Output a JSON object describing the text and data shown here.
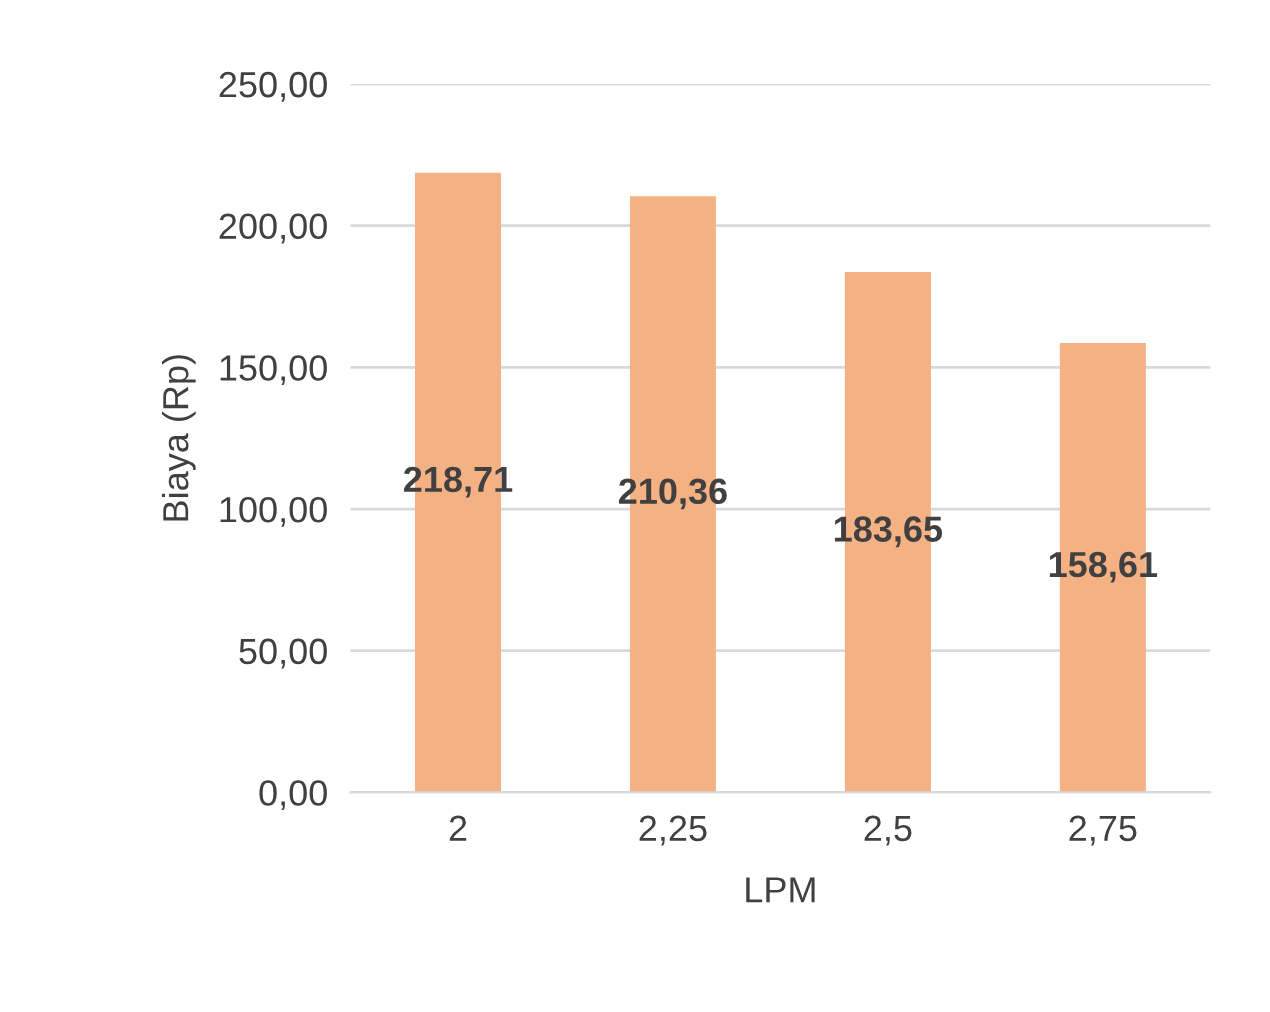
{
  "chart_data": {
    "type": "bar",
    "xlabel": "LPM",
    "ylabel": "Biaya (Rp)",
    "categories": [
      "2",
      "2,25",
      "2,5",
      "2,75"
    ],
    "values": [
      218.71,
      210.36,
      183.65,
      158.61
    ],
    "value_labels": [
      "218,71",
      "210,36",
      "183,65",
      "158,61"
    ],
    "color": "#f4b183",
    "ylim": [
      0,
      250
    ],
    "yticks": [
      {
        "value": 0,
        "label": "0,00"
      },
      {
        "value": 50,
        "label": "50,00"
      },
      {
        "value": 100,
        "label": "100,00"
      },
      {
        "value": 150,
        "label": "150,00"
      },
      {
        "value": 200,
        "label": "200,00"
      },
      {
        "value": 250,
        "label": "250,00"
      }
    ],
    "grid": "y",
    "legend": false
  }
}
